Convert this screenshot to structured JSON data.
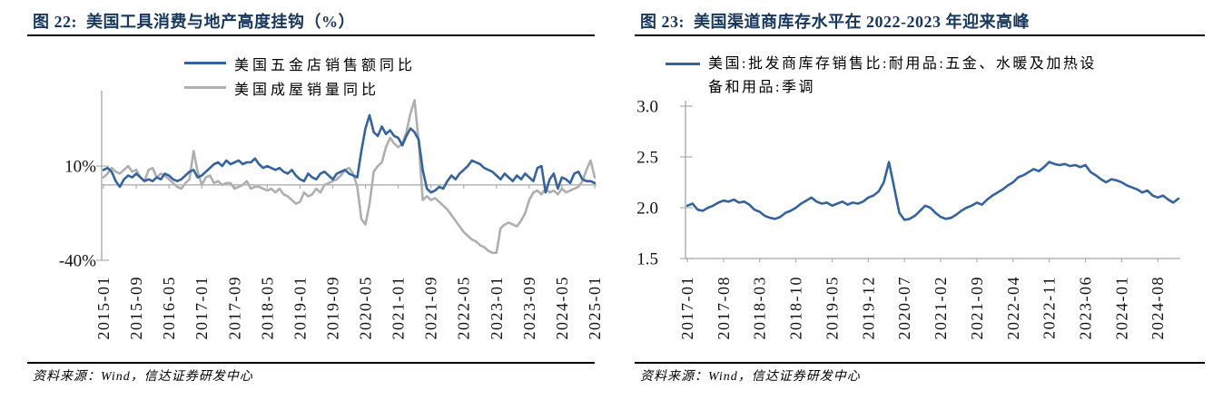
{
  "figures": [
    {
      "title": "图 22:  美国工具消费与地产高度挂钩（%）",
      "source": "资料来源：Wind，信达证券研发中心"
    },
    {
      "title": "图 23:  美国渠道商库存水平在 2022-2023 年迎来高峰",
      "source": "资料来源：Wind，信达证券研发中心"
    }
  ],
  "chart_data": [
    {
      "type": "line",
      "title": "美国工具消费与地产高度挂钩（%）",
      "xlabel": "",
      "ylabel": "%",
      "ylim": [
        -40,
        50
      ],
      "legend_position": "top",
      "grid": false,
      "y_ticks": [
        10,
        -40
      ],
      "y_tick_labels": [
        "10%",
        "-40%"
      ],
      "x_tick_step": 8,
      "x_tick_labels": [
        "2015-01",
        "2015-09",
        "2016-05",
        "2017-01",
        "2017-09",
        "2018-05",
        "2019-01",
        "2019-09",
        "2020-05",
        "2021-01",
        "2021-09",
        "2022-05",
        "2023-01",
        "2023-09",
        "2024-05",
        "2025-01"
      ],
      "x_range_note": "monthly 2015-01 to 2025-01",
      "series": [
        {
          "name": "美国五金店销售额同比",
          "color": "#35639F",
          "values": [
            8,
            9,
            7,
            2,
            -1,
            3,
            5,
            4,
            6,
            4,
            2,
            3,
            2,
            4,
            3,
            6,
            5,
            3,
            2,
            3,
            5,
            7,
            8,
            4,
            5,
            7,
            9,
            11,
            12,
            10,
            13,
            11,
            12,
            13,
            11,
            12,
            12,
            14,
            11,
            9,
            10,
            9,
            8,
            9,
            7,
            6,
            8,
            5,
            3,
            2,
            6,
            4,
            3,
            6,
            7,
            5,
            3,
            6,
            7,
            8,
            6,
            5,
            4,
            18,
            30,
            37,
            28,
            26,
            31,
            27,
            29,
            26,
            25,
            21,
            26,
            30,
            28,
            24,
            8,
            -2,
            -4,
            -3,
            -1,
            -2,
            2,
            5,
            3,
            6,
            8,
            10,
            13,
            12,
            11,
            9,
            8,
            7,
            5,
            3,
            6,
            4,
            2,
            5,
            3,
            6,
            4,
            2,
            9,
            10,
            -4,
            3,
            6,
            -2,
            4,
            3,
            1,
            6,
            7,
            3,
            2,
            2,
            1
          ]
        },
        {
          "name": "美国成屋销量同比",
          "color": "#AFAFAF",
          "values": [
            4,
            6,
            9,
            7,
            6,
            8,
            10,
            7,
            8,
            4,
            2,
            8,
            9,
            4,
            6,
            5,
            3,
            1,
            -1,
            -2,
            1,
            3,
            18,
            7,
            0,
            4,
            5,
            1,
            2,
            0,
            1,
            1,
            -2,
            -1,
            0,
            2,
            -2,
            -1,
            -1,
            -2,
            -3,
            -2,
            -4,
            -2,
            -5,
            -6,
            -8,
            -10,
            -9,
            -4,
            -6,
            -5,
            -2,
            -4,
            0,
            1,
            2,
            3,
            5,
            8,
            9,
            6,
            -1,
            -18,
            -21,
            -10,
            7,
            10,
            12,
            20,
            25,
            22,
            20,
            22,
            28,
            38,
            45,
            23,
            -8,
            -6,
            -8,
            -7,
            -9,
            -11,
            -13,
            -16,
            -19,
            -22,
            -25,
            -27,
            -29,
            -30,
            -32,
            -33,
            -35,
            -36,
            -36,
            -23,
            -21,
            -20,
            -21,
            -22,
            -19,
            -15,
            -8,
            -4,
            -3,
            -5,
            -2,
            -4,
            -3,
            -5,
            -2,
            -4,
            -3,
            -2,
            -1,
            2,
            8,
            13,
            4
          ]
        }
      ]
    },
    {
      "type": "line",
      "title": "美国渠道商库存水平在 2022-2023 年迎来高峰",
      "xlabel": "",
      "ylabel": "",
      "ylim": [
        1.5,
        3.0
      ],
      "legend_position": "top",
      "grid": false,
      "y_ticks": [
        3.0,
        2.5,
        2.0,
        1.5
      ],
      "y_tick_labels": [
        "3.0",
        "2.5",
        "2.0",
        "1.5"
      ],
      "x_tick_step": 7,
      "x_tick_labels": [
        "2017-01",
        "2017-08",
        "2018-03",
        "2018-10",
        "2019-05",
        "2019-12",
        "2020-07",
        "2021-02",
        "2021-09",
        "2022-04",
        "2022-11",
        "2023-06",
        "2024-01",
        "2024-08"
      ],
      "x_range_note": "monthly 2017-01 to 2024-12",
      "series": [
        {
          "name": "美国:批发商库存销售比:耐用品:五金、水暖及加热设备和用品:季调",
          "color": "#35639F",
          "values": [
            2.02,
            2.04,
            1.98,
            1.97,
            2.0,
            2.02,
            2.05,
            2.07,
            2.06,
            2.08,
            2.05,
            2.06,
            2.03,
            1.98,
            1.96,
            1.92,
            1.9,
            1.89,
            1.91,
            1.95,
            1.97,
            2.0,
            2.04,
            2.07,
            2.1,
            2.06,
            2.04,
            2.05,
            2.02,
            2.04,
            2.06,
            2.03,
            2.05,
            2.04,
            2.06,
            2.1,
            2.12,
            2.16,
            2.25,
            2.45,
            2.2,
            1.95,
            1.88,
            1.89,
            1.92,
            1.97,
            2.02,
            2.0,
            1.95,
            1.91,
            1.89,
            1.9,
            1.93,
            1.97,
            2.0,
            2.02,
            2.05,
            2.03,
            2.08,
            2.12,
            2.15,
            2.18,
            2.22,
            2.25,
            2.3,
            2.32,
            2.35,
            2.38,
            2.36,
            2.4,
            2.45,
            2.43,
            2.42,
            2.43,
            2.41,
            2.42,
            2.4,
            2.42,
            2.35,
            2.32,
            2.28,
            2.25,
            2.28,
            2.27,
            2.25,
            2.22,
            2.2,
            2.18,
            2.15,
            2.17,
            2.12,
            2.1,
            2.12,
            2.08,
            2.05,
            2.09
          ]
        }
      ]
    }
  ],
  "colors": {
    "title_navy": "#17375E",
    "line_blue": "#35639F",
    "line_gray": "#AFAFAF",
    "axis_gray": "#A6A6A6",
    "rule_black": "#000000"
  }
}
